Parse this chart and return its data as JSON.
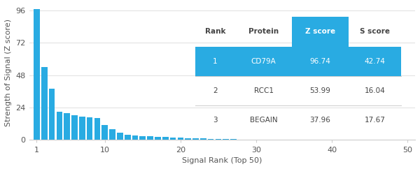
{
  "bar_color": "#29ABE2",
  "background_color": "#ffffff",
  "ylabel": "Strength of Signal (Z score)",
  "xlabel": "Signal Rank (Top 50)",
  "yticks": [
    0,
    24,
    48,
    72,
    96
  ],
  "xticks": [
    1,
    10,
    20,
    30,
    40,
    50
  ],
  "xlim": [
    0.0,
    51.0
  ],
  "ylim": [
    0,
    100
  ],
  "z_scores": [
    96.74,
    53.99,
    37.96,
    21.0,
    20.0,
    18.5,
    17.5,
    17.0,
    16.5,
    11.0,
    8.0,
    5.5,
    4.0,
    3.5,
    3.0,
    2.8,
    2.5,
    2.2,
    2.0,
    1.8,
    1.5,
    1.3,
    1.1,
    0.9,
    0.8,
    0.7,
    0.6,
    0.5,
    0.45,
    0.4,
    0.35,
    0.3,
    0.28,
    0.25,
    0.22,
    0.2,
    0.18,
    0.16,
    0.15,
    0.13,
    0.12,
    0.11,
    0.1,
    0.09,
    0.08,
    0.07,
    0.06,
    0.05,
    0.04,
    0.03
  ],
  "table_data": [
    {
      "rank": "1",
      "protein": "CD79A",
      "z_score": "96.74",
      "s_score": "42.74",
      "highlight": true
    },
    {
      "rank": "2",
      "protein": "RCC1",
      "z_score": "53.99",
      "s_score": "16.04",
      "highlight": false
    },
    {
      "rank": "3",
      "protein": "BEGAIN",
      "z_score": "37.96",
      "s_score": "17.67",
      "highlight": false
    }
  ],
  "table_header_color": "#29ABE2",
  "table_row_highlight_color": "#29ABE2",
  "table_text_color_normal": "#444444",
  "table_text_color_highlight": "#ffffff",
  "table_header_text_color_normal": "#444444",
  "table_header_text_color_highlight": "#ffffff",
  "col_labels": [
    "Rank",
    "Protein",
    "Z score",
    "S score"
  ],
  "highlight_col": 2
}
